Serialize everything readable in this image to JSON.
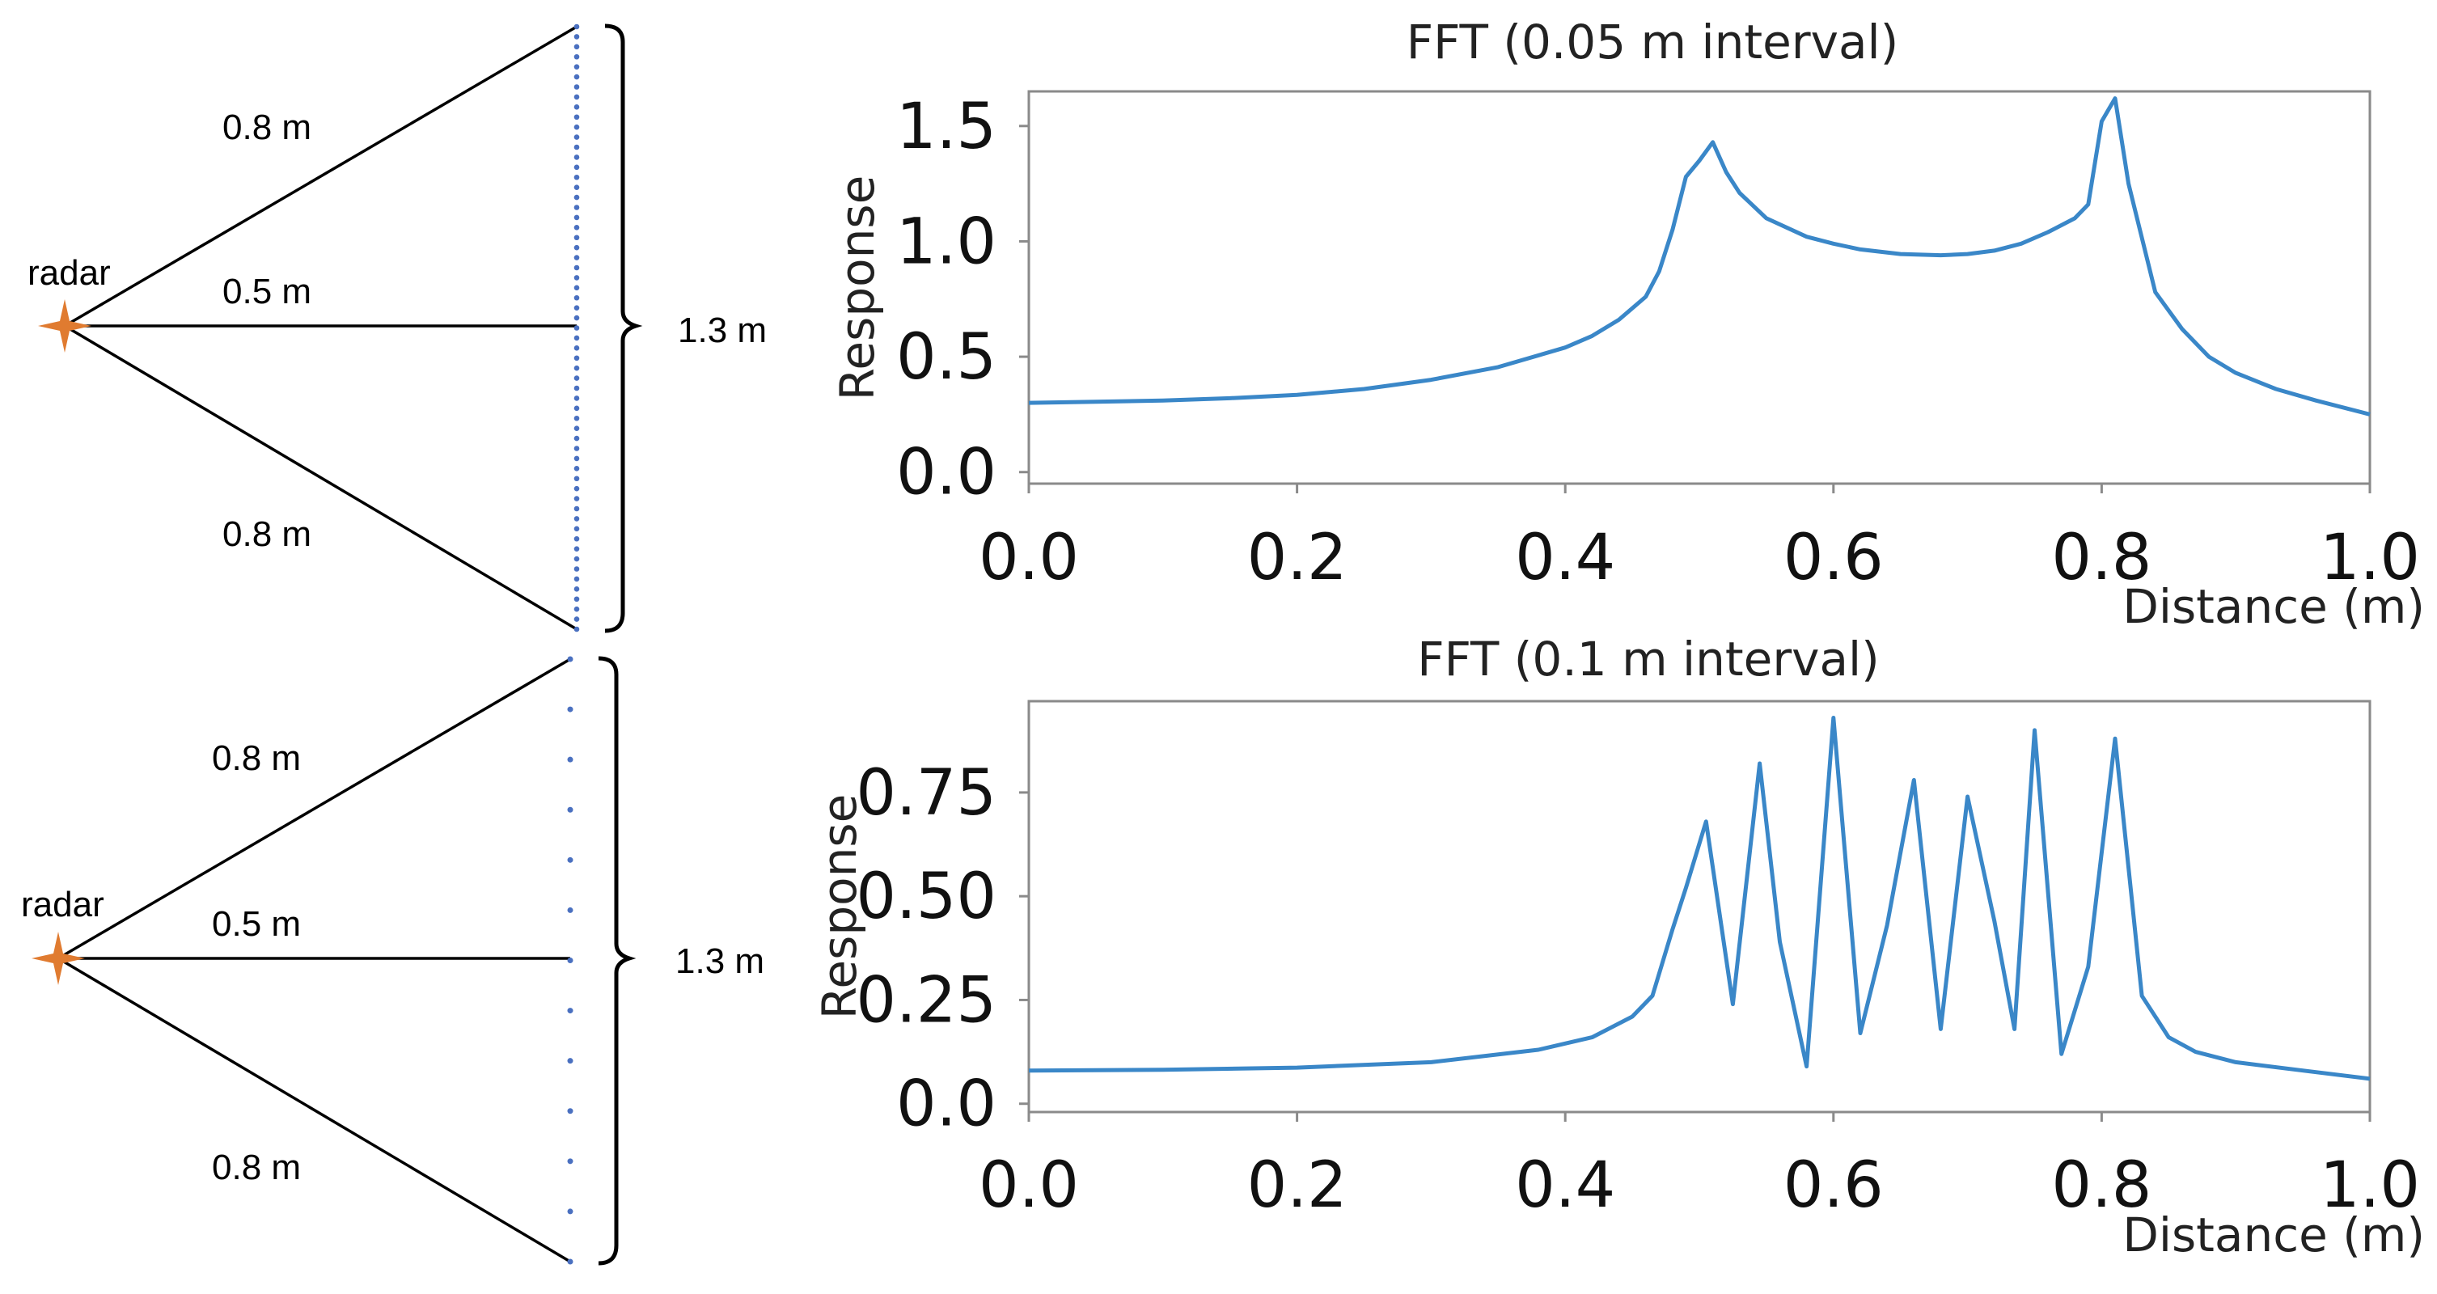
{
  "diagrams": [
    {
      "radar_label": "radar",
      "slant_upper_label": "0.8 m",
      "center_label": "0.5 m",
      "slant_lower_label": "0.8 m",
      "span_label": "1.3 m",
      "element_count": 61
    },
    {
      "radar_label": "radar",
      "slant_upper_label": "0.8 m",
      "center_label": "0.5 m",
      "slant_lower_label": "0.8 m",
      "span_label": "1.3 m",
      "element_count": 13
    }
  ],
  "colors": {
    "line": "#3a87c8",
    "dots": "#4a70c0",
    "radar": "#e07b30",
    "axes": "#8a8a8a",
    "text": "#222222"
  },
  "chart_data": [
    {
      "type": "line",
      "title": "FFT (0.05 m interval)",
      "xlabel": "Distance (m)",
      "ylabel": "Response",
      "xlim": [
        0,
        1.0
      ],
      "ylim": [
        -0.05,
        1.65
      ],
      "xticks": [
        "0.0",
        "0.2",
        "0.4",
        "0.6",
        "0.8",
        "1.0"
      ],
      "yticks": [
        "0.0",
        "0.5",
        "1.0",
        "1.5"
      ],
      "grid": false,
      "x": [
        0,
        0.05,
        0.1,
        0.15,
        0.2,
        0.25,
        0.3,
        0.35,
        0.4,
        0.42,
        0.44,
        0.46,
        0.47,
        0.48,
        0.49,
        0.5,
        0.51,
        0.52,
        0.53,
        0.55,
        0.58,
        0.6,
        0.62,
        0.65,
        0.68,
        0.7,
        0.72,
        0.74,
        0.76,
        0.78,
        0.79,
        0.8,
        0.81,
        0.82,
        0.84,
        0.86,
        0.88,
        0.9,
        0.93,
        0.96,
        1.0
      ],
      "series": [
        {
          "name": "FFT (0.05 m interval)",
          "values": [
            0.3,
            0.305,
            0.31,
            0.32,
            0.335,
            0.36,
            0.4,
            0.455,
            0.54,
            0.59,
            0.66,
            0.76,
            0.87,
            1.05,
            1.28,
            1.35,
            1.43,
            1.3,
            1.21,
            1.1,
            1.02,
            0.99,
            0.965,
            0.945,
            0.94,
            0.945,
            0.96,
            0.99,
            1.04,
            1.1,
            1.16,
            1.52,
            1.62,
            1.25,
            0.78,
            0.62,
            0.5,
            0.43,
            0.36,
            0.31,
            0.25
          ]
        }
      ]
    },
    {
      "type": "line",
      "title": "FFT (0.1 m interval)",
      "xlabel": "Distance (m)",
      "ylabel": "Response",
      "xlim": [
        0,
        1.0
      ],
      "ylim": [
        -0.02,
        0.97
      ],
      "xticks": [
        "0.0",
        "0.2",
        "0.4",
        "0.6",
        "0.8",
        "1.0"
      ],
      "yticks": [
        "0.0",
        "0.25",
        "0.50",
        "0.75"
      ],
      "grid": false,
      "x": [
        0,
        0.1,
        0.2,
        0.3,
        0.38,
        0.42,
        0.45,
        0.465,
        0.48,
        0.49,
        0.505,
        0.525,
        0.545,
        0.56,
        0.58,
        0.6,
        0.62,
        0.64,
        0.66,
        0.68,
        0.7,
        0.72,
        0.735,
        0.75,
        0.77,
        0.79,
        0.81,
        0.83,
        0.85,
        0.87,
        0.9,
        0.95,
        1.0
      ],
      "series": [
        {
          "name": "FFT (0.1 m interval)",
          "values": [
            0.08,
            0.082,
            0.087,
            0.1,
            0.13,
            0.16,
            0.21,
            0.26,
            0.42,
            0.52,
            0.68,
            0.24,
            0.82,
            0.39,
            0.09,
            0.93,
            0.17,
            0.43,
            0.78,
            0.18,
            0.74,
            0.44,
            0.18,
            0.9,
            0.12,
            0.33,
            0.88,
            0.26,
            0.16,
            0.125,
            0.1,
            0.08,
            0.06
          ]
        }
      ]
    }
  ]
}
